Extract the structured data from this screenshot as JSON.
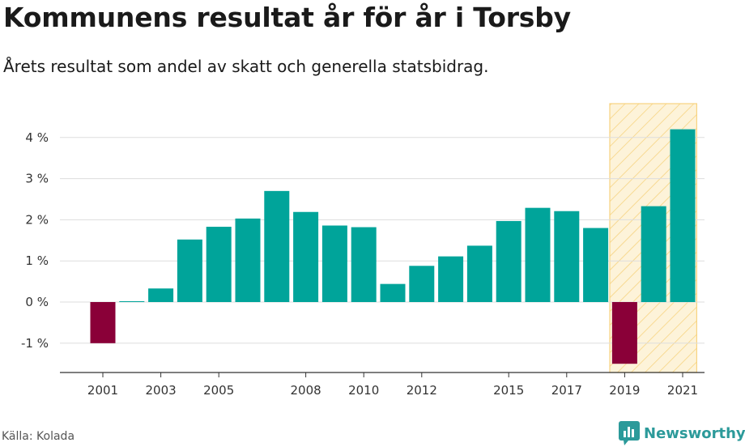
{
  "header": {
    "title": "Kommunens resultat år för år i Torsby",
    "subtitle": "Årets resultat som andel av skatt och generella statsbidrag."
  },
  "footer": {
    "source": "Källa: Kolada",
    "brand": "Newsworthy"
  },
  "colors": {
    "positive": "#00a49a",
    "negative": "#8a0038",
    "highlight_fill": "#fdf3d9",
    "highlight_stripe": "#f7d380",
    "grid": "#dddddd",
    "axis": "#333333",
    "brand": "#2c9a9a"
  },
  "icons": {
    "brand_logo": "newsworthy-logo-icon"
  },
  "chart_data": {
    "type": "bar",
    "title": "Kommunens resultat år för år i Torsby",
    "subtitle": "Årets resultat som andel av skatt och generella statsbidrag.",
    "categories": [
      "2001",
      "2002",
      "2003",
      "2004",
      "2005",
      "2006",
      "2007",
      "2008",
      "2009",
      "2010",
      "2011",
      "2012",
      "2013",
      "2014",
      "2015",
      "2016",
      "2017",
      "2018",
      "2019",
      "2020",
      "2021"
    ],
    "values": [
      -1.0,
      0.02,
      0.33,
      1.52,
      1.83,
      2.03,
      2.7,
      2.19,
      1.86,
      1.82,
      0.44,
      0.88,
      1.11,
      1.37,
      1.97,
      2.29,
      2.21,
      1.8,
      -1.5,
      2.33,
      4.2
    ],
    "x_tick_labels": [
      "2001",
      "2003",
      "2005",
      "2008",
      "2010",
      "2012",
      "2015",
      "2017",
      "2019",
      "2021"
    ],
    "y_ticks": [
      -1,
      0,
      1,
      2,
      3,
      4
    ],
    "y_tick_labels": [
      "-1 %",
      "0 %",
      "1 %",
      "2 %",
      "3 %",
      "4 %"
    ],
    "ylim": [
      -1.75,
      4.85
    ],
    "highlight_range": [
      "2019",
      "2021"
    ],
    "xlabel": "",
    "ylabel": "",
    "grid": true
  }
}
